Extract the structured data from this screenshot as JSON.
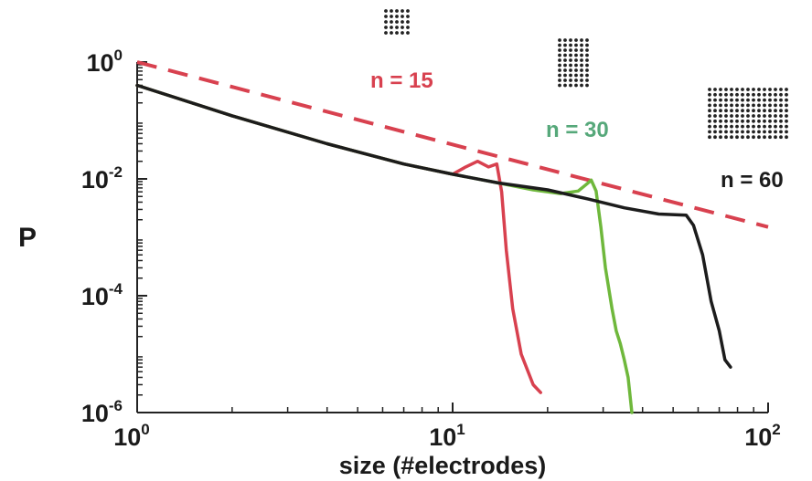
{
  "chart_data": {
    "type": "line",
    "xlabel": "size (#electrodes)",
    "ylabel": "P",
    "xscale": "log",
    "yscale": "log",
    "xlim": [
      1,
      100
    ],
    "ylim": [
      1e-06,
      1
    ],
    "grid": false,
    "x_ticks": [
      {
        "base": "10",
        "exp": "0"
      },
      {
        "base": "10",
        "exp": "1"
      },
      {
        "base": "10",
        "exp": "2"
      }
    ],
    "y_ticks": [
      {
        "base": "10",
        "exp": "0"
      },
      {
        "base": "10",
        "exp": "-2"
      },
      {
        "base": "10",
        "exp": "-4"
      },
      {
        "base": "10",
        "exp": "-6"
      }
    ],
    "series": [
      {
        "name": "n = 15",
        "color": "#d8414f",
        "x": [
          1,
          2,
          4,
          7,
          10,
          11,
          12,
          13,
          13.8,
          14.3,
          14.8,
          15.5,
          16.5,
          18,
          19
        ],
        "y": [
          0.4,
          0.12,
          0.04,
          0.018,
          0.012,
          0.016,
          0.02,
          0.016,
          0.018,
          0.006,
          0.0006,
          6e-05,
          1e-05,
          3e-06,
          2.2e-06
        ]
      },
      {
        "name": "n = 30",
        "color": "#6fb83c",
        "x": [
          1,
          2,
          4,
          7,
          10,
          14,
          18,
          22,
          25,
          26.5,
          27.5,
          28.5,
          29.5,
          30.5,
          32,
          33,
          34,
          35,
          36,
          37
        ],
        "y": [
          0.4,
          0.12,
          0.04,
          0.018,
          0.012,
          0.0085,
          0.0065,
          0.0056,
          0.0062,
          0.008,
          0.0095,
          0.0062,
          0.0015,
          0.0003,
          6e-05,
          2.5e-05,
          1.5e-05,
          8e-06,
          4e-06,
          1e-06
        ]
      },
      {
        "name": "n = 60",
        "color": "#1c1c1c",
        "x": [
          1,
          2,
          4,
          7,
          10,
          14,
          20,
          27,
          35,
          45,
          55,
          58,
          62,
          66,
          70,
          73,
          76
        ],
        "y": [
          0.4,
          0.12,
          0.04,
          0.018,
          0.012,
          0.0085,
          0.0065,
          0.0045,
          0.0032,
          0.0025,
          0.0024,
          0.0016,
          0.0005,
          8e-05,
          2.5e-05,
          8e-06,
          6e-06
        ]
      }
    ],
    "reference_line": {
      "color": "#d8414f",
      "style": "dashed",
      "x": [
        1,
        100
      ],
      "y": [
        1,
        0.0015
      ]
    },
    "annotations": [
      {
        "text": "n = 15",
        "color": "#d8414f"
      },
      {
        "text": "n = 30",
        "color": "#56a87a"
      },
      {
        "text": "n = 60",
        "color": "#1c1c1c"
      }
    ],
    "electrode_grids": [
      {
        "label_for": "n = 15",
        "cols": 5,
        "rows": 5
      },
      {
        "label_for": "n = 30",
        "cols": 6,
        "rows": 10
      },
      {
        "label_for": "n = 60",
        "cols": 15,
        "rows": 10
      }
    ]
  }
}
